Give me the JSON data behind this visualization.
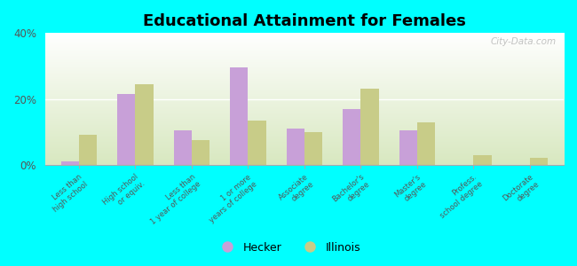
{
  "title": "Educational Attainment for Females",
  "categories": [
    "Less than\nhigh school",
    "High school\nor equiv.",
    "Less than\n1 year of college",
    "1 or more\nyears of college",
    "Associate\ndegree",
    "Bachelor's\ndegree",
    "Master's\ndegree",
    "Profess.\nschool degree",
    "Doctorate\ndegree"
  ],
  "hecker_values": [
    1.0,
    21.5,
    10.5,
    29.5,
    11.0,
    17.0,
    10.5,
    0.0,
    0.0
  ],
  "illinois_values": [
    9.0,
    24.5,
    7.5,
    13.5,
    10.0,
    23.0,
    13.0,
    3.0,
    2.0
  ],
  "hecker_color": "#c8a0d8",
  "illinois_color": "#c8cc88",
  "background_color": "#00ffff",
  "ylim": [
    0,
    40
  ],
  "yticks": [
    0,
    20,
    40
  ],
  "ytick_labels": [
    "0%",
    "20%",
    "40%"
  ],
  "legend_labels": [
    "Hecker",
    "Illinois"
  ],
  "watermark": "City-Data.com",
  "bar_width": 0.32
}
